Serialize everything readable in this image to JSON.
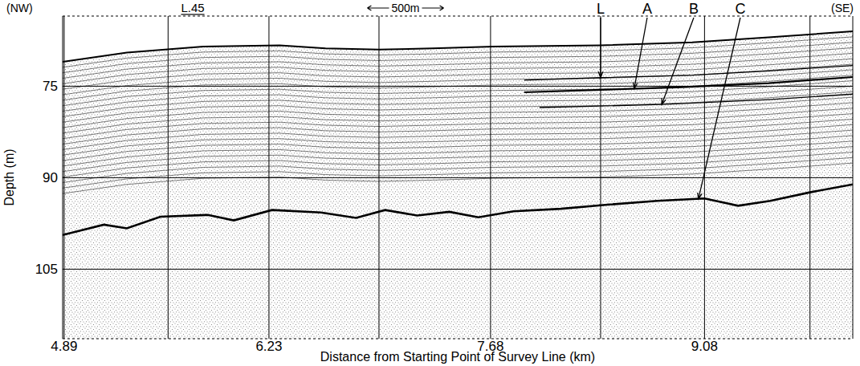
{
  "chart_data": {
    "type": "line",
    "title": "L.45",
    "x_label": "Distance from Starting Point of Survey Line (km)",
    "y_label": "Depth (m)",
    "side_labels": {
      "left": "(NW)",
      "right": "(SE)"
    },
    "scale_bar": {
      "label": "500m",
      "length": 0.5
    },
    "xlim": [
      4.88,
      10.05
    ],
    "ylim": [
      116.4,
      63.5
    ],
    "xticks": [
      4.89,
      6.23,
      7.68,
      9.08
    ],
    "fix_lines": [
      5.57,
      6.95,
      8.4,
      9.77
    ],
    "yticks": [
      75,
      90,
      105
    ],
    "grid": true,
    "color": "#000000",
    "series": [
      {
        "x": [
          4.88,
          5.3,
          5.8,
          6.3,
          6.6,
          6.95,
          7.3,
          7.7,
          8.4,
          9.0,
          9.5,
          10.05
        ],
        "values": [
          71.0,
          69.5,
          68.5,
          68.3,
          68.8,
          69.0,
          68.8,
          68.5,
          68.3,
          67.8,
          67.0,
          66.0
        ]
      },
      {
        "name": "L",
        "x": [
          7.9,
          8.4,
          9.0,
          9.5,
          10.05
        ],
        "values": [
          74.0,
          73.6,
          73.2,
          72.5,
          71.6
        ]
      },
      {
        "name": "A",
        "x": [
          7.9,
          8.4,
          8.9,
          9.5,
          10.05
        ],
        "values": [
          76.0,
          75.6,
          75.2,
          74.5,
          73.5
        ]
      },
      {
        "name": "B",
        "x": [
          8.0,
          8.8,
          9.5,
          10.05
        ],
        "values": [
          78.5,
          78.0,
          77.2,
          76.3
        ]
      },
      {
        "name": "C",
        "x": [
          4.88,
          5.15,
          5.3,
          5.52,
          5.83,
          6.0,
          6.25,
          6.57,
          6.8,
          6.99,
          7.2,
          7.41,
          7.6,
          7.83,
          8.14,
          8.46,
          8.77,
          9.08,
          9.3,
          9.51,
          9.77,
          10.05
        ],
        "values": [
          99.4,
          97.7,
          98.3,
          96.4,
          96.1,
          97.0,
          95.3,
          95.7,
          96.6,
          95.3,
          96.2,
          95.6,
          96.5,
          95.5,
          95.1,
          94.4,
          93.8,
          93.4,
          94.6,
          93.8,
          92.4,
          91.1
        ]
      }
    ],
    "annotations": [
      {
        "text": "L",
        "x": 8.4,
        "y": 73.6
      },
      {
        "text": "A",
        "x": 8.62,
        "y": 75.4
      },
      {
        "text": "B",
        "x": 8.8,
        "y": 78.0
      },
      {
        "text": "C",
        "x": 9.04,
        "y": 93.5
      }
    ]
  }
}
